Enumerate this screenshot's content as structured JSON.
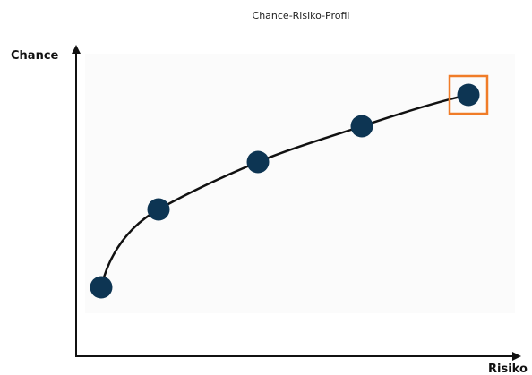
{
  "title": "Chance-Risiko-Profil",
  "axes": {
    "y_label": "Chance",
    "x_label": "Risiko"
  }
}
